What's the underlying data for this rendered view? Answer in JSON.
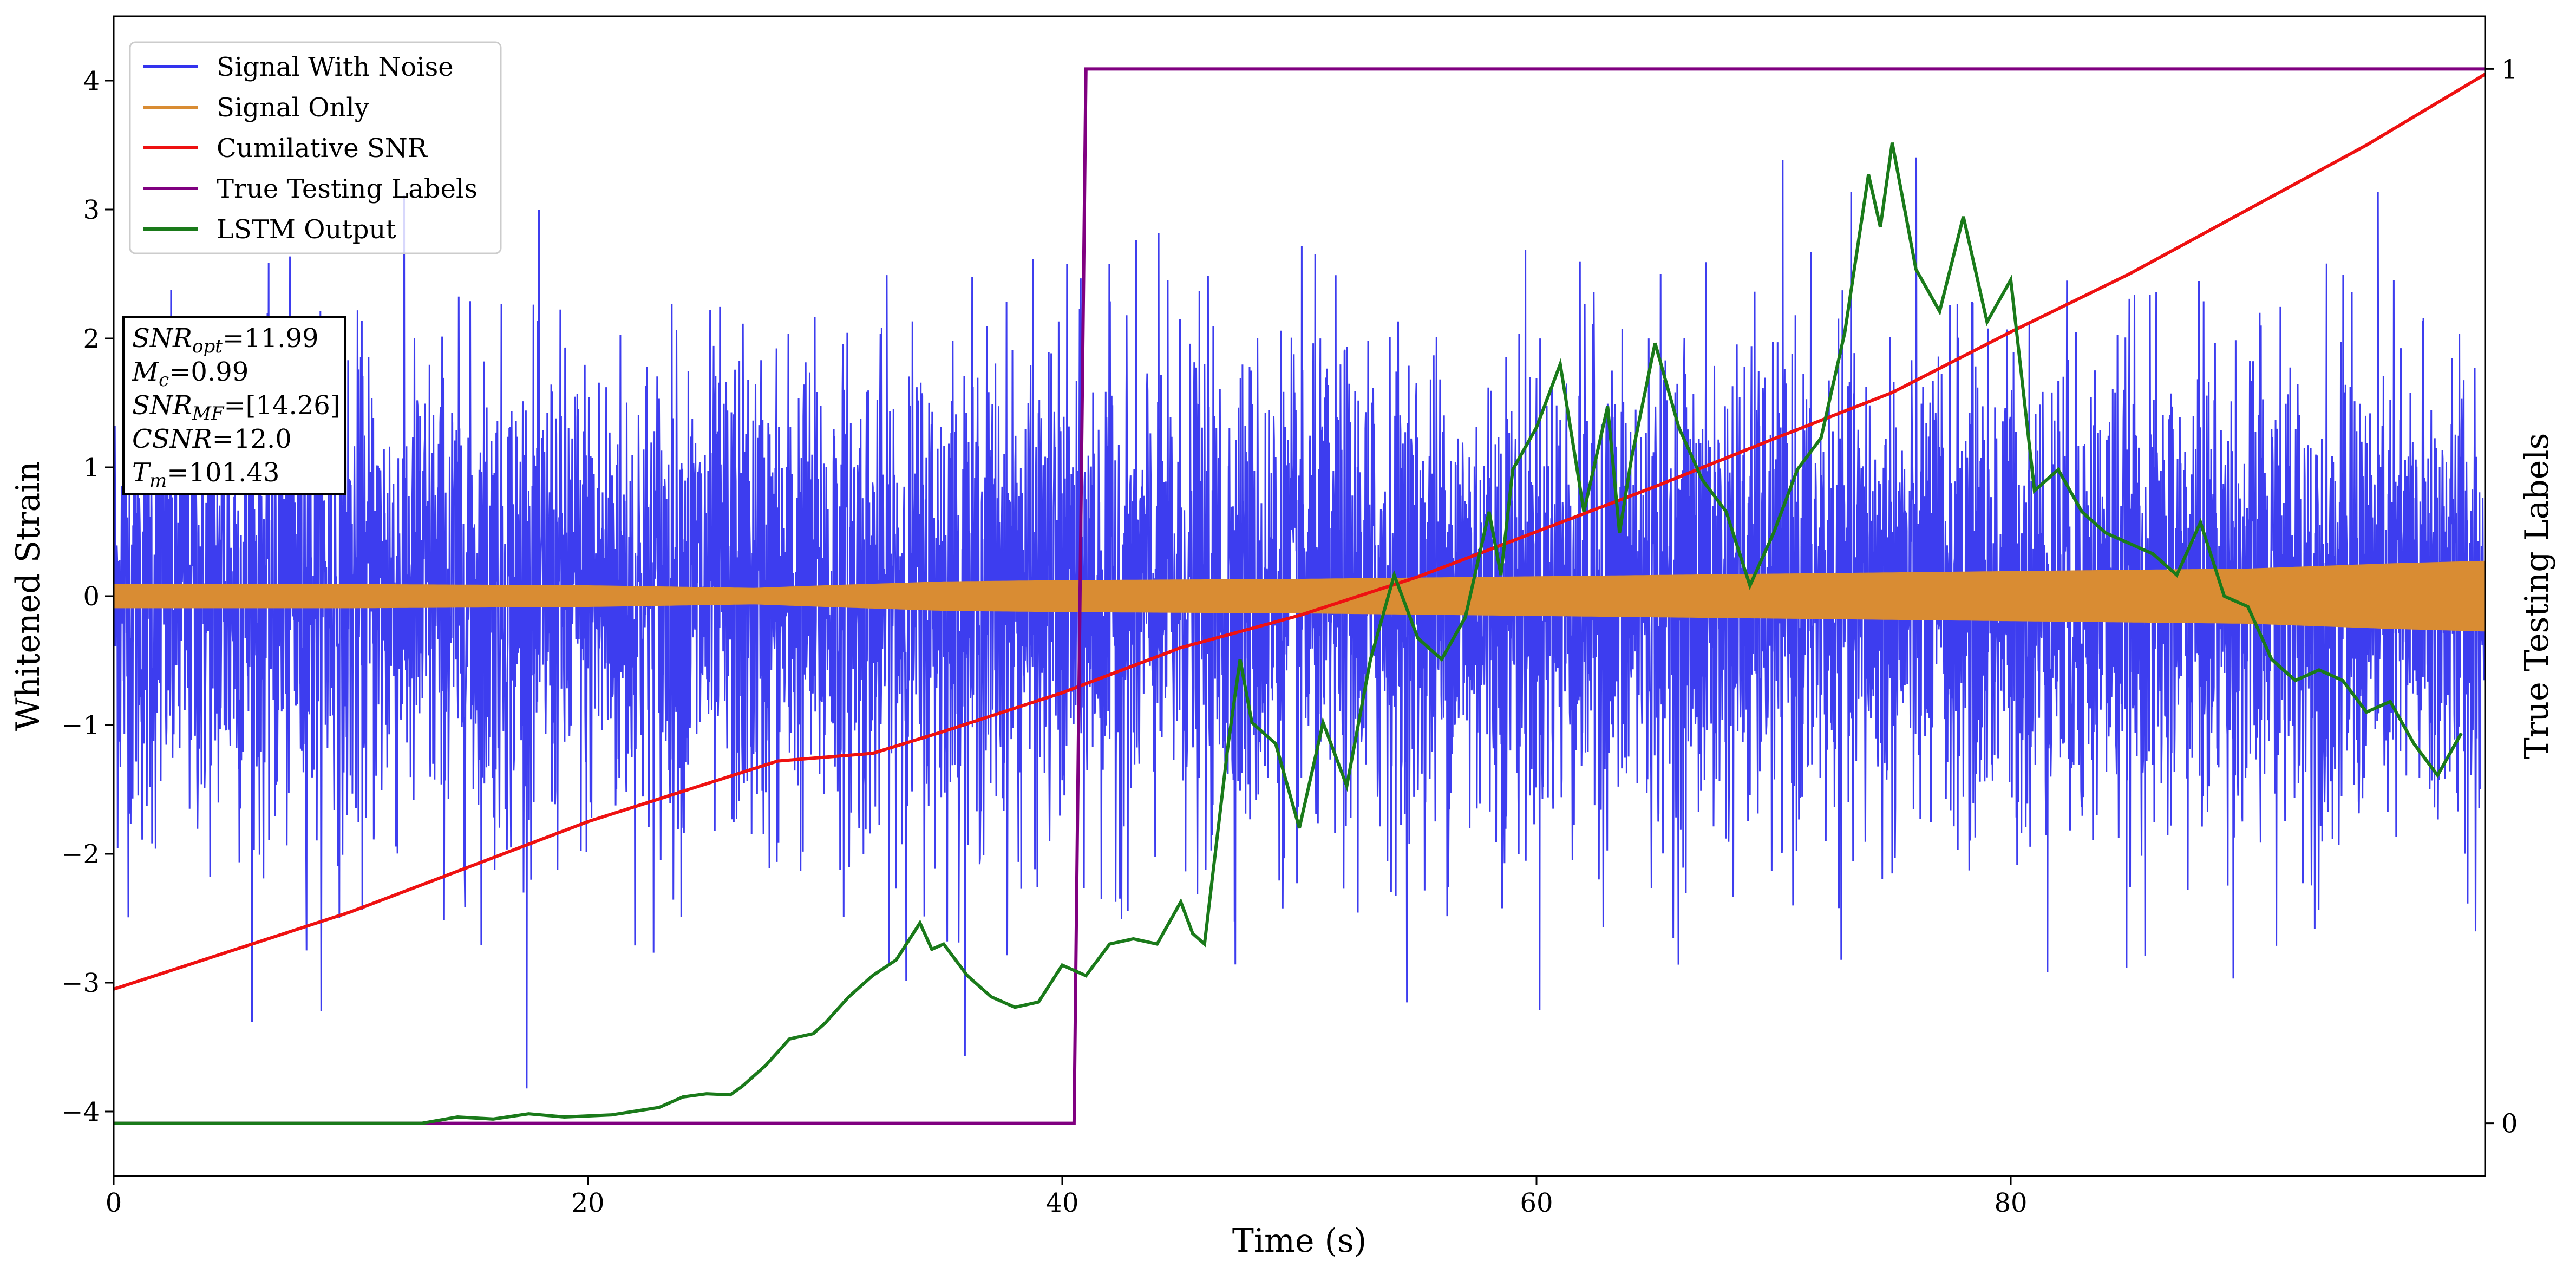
{
  "chart_data": {
    "type": "line",
    "xlabel": "Time (s)",
    "ylabel_left": "Whitened Strain",
    "ylabel_right": "True Testing Labels",
    "xlim": [
      0,
      100
    ],
    "ylim_left": [
      -4.5,
      4.5
    ],
    "ylim_right": [
      -0.05,
      1.05
    ],
    "x_ticks": [
      0,
      20,
      40,
      60,
      80
    ],
    "x_tick_labels": [
      "0",
      "20",
      "40",
      "60",
      "80"
    ],
    "y_left_ticks": [
      -4,
      -3,
      -2,
      -1,
      0,
      1,
      2,
      3,
      4
    ],
    "y_left_tick_labels": [
      "−4",
      "−3",
      "−2",
      "−1",
      "0",
      "1",
      "2",
      "3",
      "4"
    ],
    "y_right_ticks": [
      0,
      1
    ],
    "y_right_tick_labels": [
      "0",
      "1"
    ],
    "grid": false,
    "legend_position": "upper-left",
    "colors": {
      "signal_with_noise": "#3333ee",
      "signal_only": "#d98c33",
      "cumulative_snr": "#ee1111",
      "true_labels": "#800080",
      "lstm_output": "#1a7a1a"
    },
    "series": [
      {
        "name": "Signal With Noise",
        "axis": "left",
        "description_values": {
          "noise_std": 1.0,
          "peak_max": 4.2,
          "peak_min": -4.1
        }
      },
      {
        "name": "Signal Only",
        "axis": "left",
        "envelope": {
          "x": [
            0,
            10,
            20,
            27,
            30,
            35,
            40,
            50,
            60,
            70,
            80,
            90,
            96,
            100
          ],
          "amp": [
            0.09,
            0.09,
            0.08,
            0.06,
            0.08,
            0.11,
            0.12,
            0.13,
            0.15,
            0.17,
            0.19,
            0.21,
            0.25,
            0.27
          ]
        }
      },
      {
        "name": "Cumilative SNR",
        "axis": "left",
        "x": [
          0,
          10,
          20,
          28,
          32,
          35,
          40,
          45,
          50,
          55,
          60,
          65,
          70,
          75,
          80,
          85,
          90,
          95,
          100
        ],
        "y": [
          -3.05,
          -2.45,
          -1.75,
          -1.28,
          -1.22,
          -1.05,
          -0.75,
          -0.4,
          -0.15,
          0.15,
          0.5,
          0.85,
          1.22,
          1.58,
          2.05,
          2.5,
          3.0,
          3.5,
          4.05
        ]
      },
      {
        "name": "True Testing Labels",
        "axis": "right",
        "x": [
          0,
          40.5,
          41.0,
          100
        ],
        "y": [
          0,
          0,
          1,
          1
        ]
      },
      {
        "name": "LSTM Output",
        "axis": "right",
        "x": [
          0,
          13,
          14.5,
          16,
          17.5,
          19,
          21,
          23,
          24,
          25,
          26,
          26.5,
          27.5,
          28.5,
          29.5,
          30,
          31,
          32,
          33,
          34,
          34.5,
          35,
          36,
          37,
          38,
          39,
          40,
          41,
          42,
          43,
          44,
          45,
          45.5,
          46,
          47,
          47.5,
          48,
          49,
          50,
          51,
          52,
          53,
          54,
          55,
          56,
          57,
          58,
          58.5,
          59,
          60,
          61,
          62,
          63,
          63.5,
          64,
          65,
          66,
          67,
          68,
          69,
          70,
          71,
          72,
          73,
          74,
          74.5,
          75,
          76,
          77,
          78,
          79,
          80,
          81,
          82,
          83,
          84,
          85,
          86,
          87,
          88,
          89,
          90,
          91,
          92,
          93,
          94,
          95,
          96,
          97,
          98,
          99
        ],
        "y": [
          0,
          0,
          0.006,
          0.004,
          0.009,
          0.006,
          0.008,
          0.015,
          0.025,
          0.028,
          0.027,
          0.035,
          0.055,
          0.08,
          0.085,
          0.095,
          0.12,
          0.14,
          0.155,
          0.19,
          0.165,
          0.17,
          0.14,
          0.12,
          0.11,
          0.115,
          0.15,
          0.14,
          0.17,
          0.175,
          0.17,
          0.21,
          0.18,
          0.17,
          0.36,
          0.44,
          0.38,
          0.36,
          0.28,
          0.38,
          0.32,
          0.44,
          0.52,
          0.46,
          0.44,
          0.48,
          0.58,
          0.52,
          0.62,
          0.66,
          0.72,
          0.58,
          0.68,
          0.56,
          0.63,
          0.74,
          0.66,
          0.61,
          0.58,
          0.51,
          0.56,
          0.62,
          0.65,
          0.75,
          0.9,
          0.85,
          0.93,
          0.81,
          0.77,
          0.86,
          0.76,
          0.8,
          0.6,
          0.62,
          0.58,
          0.56,
          0.55,
          0.54,
          0.52,
          0.57,
          0.5,
          0.49,
          0.44,
          0.42,
          0.43,
          0.42,
          0.39,
          0.4,
          0.36,
          0.33,
          0.37
        ]
      }
    ],
    "annotation_box": {
      "lines": [
        {
          "sym": "SNR",
          "sub": "opt",
          "val": "=11.99"
        },
        {
          "sym": "M",
          "sub": "c",
          "val": "=0.99"
        },
        {
          "sym": "SNR",
          "sub": "MF",
          "val": "=[14.26]"
        },
        {
          "sym": "CSNR",
          "sub": "",
          "val": "=12.0"
        },
        {
          "sym": "T",
          "sub": "m",
          "val": "=101.43"
        }
      ]
    }
  }
}
